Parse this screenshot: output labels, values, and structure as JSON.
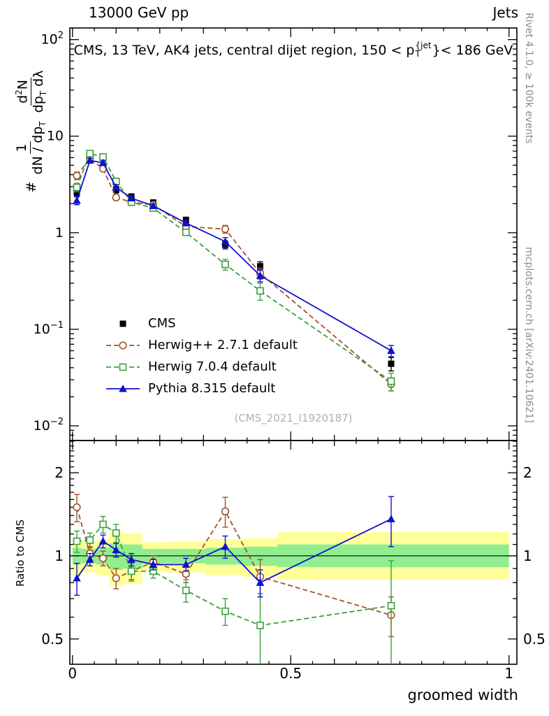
{
  "header": {
    "left": "13000 GeV pp",
    "right": "Jets"
  },
  "plot_title": {
    "prefix": "CMS, 13 TeV, AK4 jets, central dijet region, 150 < p",
    "sup": "{jet",
    "sub": "T",
    "suffix": "}< 186 GeV"
  },
  "side_notes": {
    "top_right": "Rivet 4.1.0, ≥ 100k events",
    "bottom_right": "mcplots.cern.ch [arXiv:2401.10621]"
  },
  "watermark": "(CMS_2021_I1920187)",
  "axes": {
    "main_ylabel": {
      "hash": "#",
      "frac1_num": "1",
      "frac1_den": "dN / dp",
      "frac1_den_sub": "T",
      "frac2_num_d": "d",
      "frac2_num_sup": "2",
      "frac2_num_N": "N",
      "frac2_den_dp": "dp",
      "frac2_den_sub": "T",
      "frac2_den_tail": " dλ"
    }
  },
  "chart_data": {
    "type": "line",
    "title": "CMS, 13 TeV, AK4 jets, central dijet region, 150 < pT^jet < 186 GeV",
    "xlabel": "groomed width",
    "xlim": [
      -0.006,
      1.018
    ],
    "x_ticks": {
      "major": [
        0,
        0.5,
        1
      ],
      "labels": [
        "0",
        "0.5",
        "1"
      ]
    },
    "x": [
      0.01,
      0.04,
      0.07,
      0.1,
      0.135,
      0.185,
      0.26,
      0.35,
      0.43,
      0.73
    ],
    "main": {
      "ylog": true,
      "ylim": [
        0.00705,
        132
      ],
      "yticks": [
        {
          "v": 100,
          "base": "10",
          "exp": "2"
        },
        {
          "v": 10,
          "base": "10",
          "exp": ""
        },
        {
          "v": 1,
          "base": "1",
          "exp": ""
        },
        {
          "v": 0.1,
          "base": "10",
          "exp": "−1"
        },
        {
          "v": 0.01,
          "base": "10",
          "exp": "−2"
        }
      ],
      "series": [
        {
          "name": "CMS",
          "color": "#000000",
          "marker": "square-filled",
          "line": "none",
          "y": [
            2.6,
            5.8,
            4.7,
            2.8,
            2.35,
            2.05,
            1.35,
            0.75,
            0.45,
            0.044
          ],
          "yerr": [
            0.22,
            0.35,
            0.3,
            0.22,
            0.18,
            0.14,
            0.1,
            0.07,
            0.05,
            0.007
          ]
        },
        {
          "name": "Herwig++ 2.7.1 default",
          "color": "#a0522d",
          "marker": "circle-open",
          "line": "dashed",
          "y": [
            3.9,
            5.9,
            4.6,
            2.32,
            2.07,
            1.95,
            1.16,
            1.09,
            0.38,
            0.027
          ],
          "yerr": [
            0.35,
            0.3,
            0.25,
            0.15,
            0.12,
            0.1,
            0.08,
            0.1,
            0.05,
            0.004
          ]
        },
        {
          "name": "Herwig 7.0.4 default",
          "color": "#3b9e3b",
          "marker": "square-open",
          "line": "dashed",
          "y": [
            2.95,
            6.6,
            6.1,
            3.4,
            2.07,
            1.8,
            1.01,
            0.47,
            0.25,
            0.029
          ],
          "yerr": [
            0.3,
            0.35,
            0.3,
            0.2,
            0.15,
            0.1,
            0.07,
            0.06,
            0.05,
            0.006
          ]
        },
        {
          "name": "Pythia 8.315 default",
          "color": "#1111cc",
          "marker": "triangle-filled",
          "line": "solid",
          "y": [
            2.15,
            5.6,
            5.3,
            2.95,
            2.28,
            1.9,
            1.26,
            0.81,
            0.36,
            0.06
          ],
          "yerr": [
            0.2,
            0.3,
            0.25,
            0.18,
            0.14,
            0.1,
            0.08,
            0.08,
            0.05,
            0.008
          ]
        }
      ]
    },
    "ratio": {
      "ylabel": "Ratio to CMS",
      "ylog": true,
      "ylim": [
        0.405,
        2.617
      ],
      "yticks": [
        {
          "v": 2,
          "label": "2"
        },
        {
          "v": 1,
          "label": "1"
        },
        {
          "v": 0.5,
          "label": "0.5"
        }
      ],
      "band_colors": {
        "yellow": "#ffff99",
        "green": "#90ee90"
      },
      "band_edges": [
        0,
        0.02,
        0.055,
        0.085,
        0.115,
        0.16,
        0.215,
        0.305,
        0.39,
        0.47,
        1.0
      ],
      "yellow_band": [
        [
          0.85,
          1.15
        ],
        [
          0.87,
          1.13
        ],
        [
          0.85,
          1.15
        ],
        [
          0.78,
          1.22
        ],
        [
          0.79,
          1.21
        ],
        [
          0.88,
          1.12
        ],
        [
          0.87,
          1.13
        ],
        [
          0.85,
          1.15
        ],
        [
          0.84,
          1.16
        ],
        [
          0.82,
          1.22
        ]
      ],
      "green_band": [
        [
          0.93,
          1.07
        ],
        [
          0.94,
          1.06
        ],
        [
          0.93,
          1.07
        ],
        [
          0.89,
          1.11
        ],
        [
          0.9,
          1.1
        ],
        [
          0.94,
          1.06
        ],
        [
          0.94,
          1.06
        ],
        [
          0.93,
          1.07
        ],
        [
          0.92,
          1.08
        ],
        [
          0.91,
          1.1
        ]
      ],
      "series": [
        {
          "name": "Herwig++ 2.7.1 default",
          "color": "#a0522d",
          "marker": "circle-open",
          "line": "dashed",
          "r": [
            1.5,
            1.02,
            0.98,
            0.83,
            0.88,
            0.95,
            0.86,
            1.45,
            0.84,
            0.61
          ],
          "rerr": [
            0.17,
            0.06,
            0.06,
            0.07,
            0.06,
            0.05,
            0.06,
            0.18,
            0.13,
            0.1
          ]
        },
        {
          "name": "Herwig 7.0.4 default",
          "color": "#3b9e3b",
          "marker": "square-open",
          "line": "dashed",
          "r": [
            1.13,
            1.14,
            1.3,
            1.21,
            0.88,
            0.88,
            0.75,
            0.63,
            0.56,
            0.66
          ],
          "rerr": [
            0.1,
            0.07,
            0.09,
            0.09,
            0.07,
            0.05,
            0.07,
            0.07,
            0.17,
            0.3
          ]
        },
        {
          "name": "Pythia 8.315 default",
          "color": "#1111cc",
          "marker": "triangle-filled",
          "line": "solid",
          "r": [
            0.83,
            0.97,
            1.13,
            1.05,
            0.97,
            0.93,
            0.93,
            1.08,
            0.8,
            1.36
          ],
          "rerr": [
            0.11,
            0.05,
            0.06,
            0.06,
            0.05,
            0.04,
            0.05,
            0.1,
            0.09,
            0.28
          ]
        }
      ]
    }
  }
}
